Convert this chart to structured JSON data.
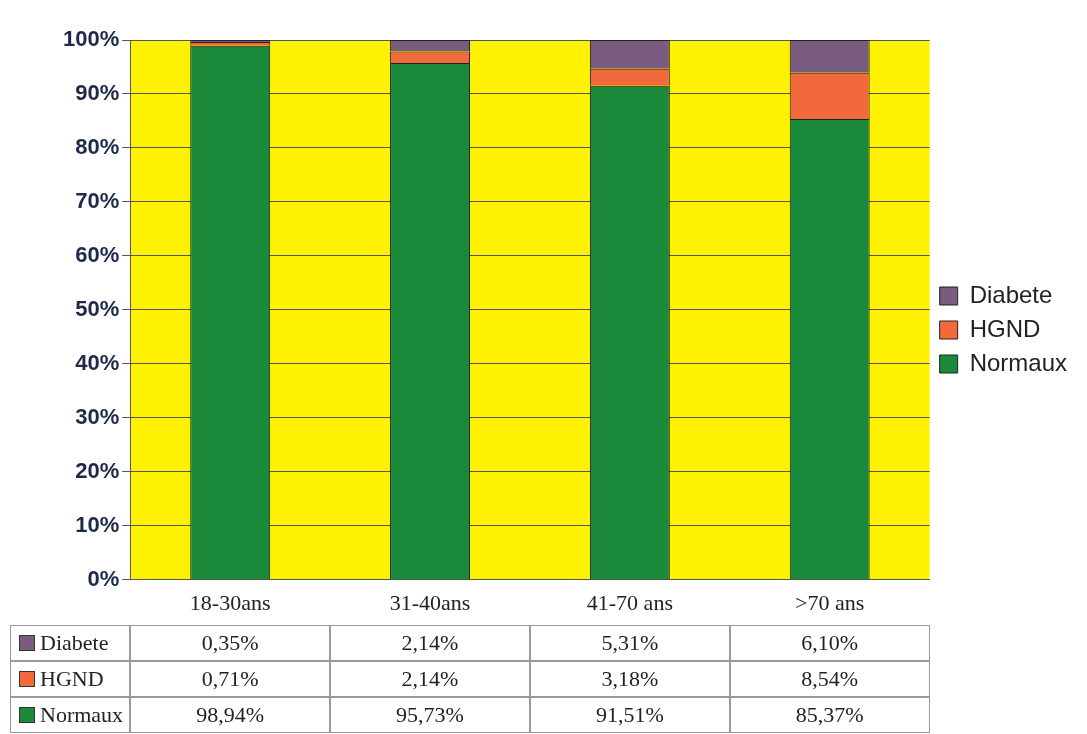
{
  "chart_data": {
    "type": "bar",
    "stacked": true,
    "categories": [
      "18-30ans",
      "31-40ans",
      "41-70 ans",
      ">70 ans"
    ],
    "series": [
      {
        "name": "Normaux",
        "color": "#1a8a3a",
        "values": [
          98.94,
          95.73,
          91.51,
          85.37
        ],
        "value_labels": [
          "98,94%",
          "95,73%",
          "91,51%",
          "85,37%"
        ]
      },
      {
        "name": "HGND",
        "color": "#f26a3c",
        "values": [
          0.71,
          2.14,
          3.18,
          8.54
        ],
        "value_labels": [
          "0,71%",
          "2,14%",
          "3,18%",
          "8,54%"
        ]
      },
      {
        "name": "Diabete",
        "color": "#7b5b7e",
        "values": [
          0.35,
          2.14,
          5.31,
          6.1
        ],
        "value_labels": [
          "0,35%",
          "2,14%",
          "5,31%",
          "6,10%"
        ]
      }
    ],
    "ylim": [
      0,
      100
    ],
    "yticks": [
      {
        "value": 0,
        "label": "0%"
      },
      {
        "value": 10,
        "label": "10%"
      },
      {
        "value": 20,
        "label": "20%"
      },
      {
        "value": 30,
        "label": "30%"
      },
      {
        "value": 40,
        "label": "40%"
      },
      {
        "value": 50,
        "label": "50%"
      },
      {
        "value": 60,
        "label": "60%"
      },
      {
        "value": 70,
        "label": "70%"
      },
      {
        "value": 80,
        "label": "80%"
      },
      {
        "value": 90,
        "label": "90%"
      },
      {
        "value": 100,
        "label": "100%"
      }
    ],
    "grid": "y",
    "legend": "right"
  }
}
